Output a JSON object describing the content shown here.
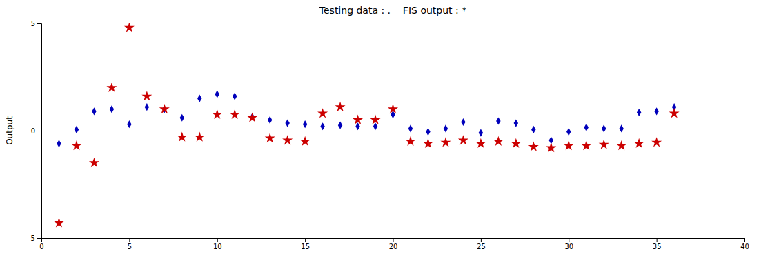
{
  "chart_data": {
    "type": "scatter",
    "title": "Testing data : .    FIS output : *",
    "y_label": "Output",
    "xlim": [
      0,
      40
    ],
    "ylim": [
      -5,
      5
    ],
    "xticks": [
      0,
      5,
      10,
      15,
      20,
      25,
      30,
      35,
      40
    ],
    "yticks": [
      -5,
      0,
      5
    ],
    "grid": false,
    "series": [
      {
        "color": "#0000bb",
        "marker": "diamond",
        "x": [
          1,
          2,
          3,
          4,
          5,
          6,
          7,
          8,
          9,
          10,
          11,
          12,
          13,
          14,
          15,
          16,
          17,
          18,
          19,
          20,
          21,
          22,
          23,
          24,
          25,
          26,
          27,
          28,
          29,
          30,
          31,
          32,
          33,
          34,
          35,
          36
        ],
        "values": [
          -0.6,
          0.05,
          0.9,
          1.0,
          0.3,
          1.1,
          1.0,
          0.6,
          1.5,
          1.7,
          1.6,
          0.65,
          0.5,
          0.35,
          0.3,
          0.2,
          0.25,
          0.2,
          0.2,
          0.75,
          0.1,
          -0.05,
          0.1,
          0.4,
          -0.1,
          0.45,
          0.35,
          0.05,
          -0.45,
          -0.05,
          0.15,
          0.1,
          0.1,
          0.85,
          0.9,
          1.1
        ]
      },
      {
        "color": "#cc0000",
        "marker": "star",
        "x": [
          1,
          2,
          3,
          4,
          5,
          6,
          7,
          8,
          9,
          10,
          11,
          12,
          13,
          14,
          15,
          16,
          17,
          18,
          19,
          20,
          21,
          22,
          23,
          24,
          25,
          26,
          27,
          28,
          29,
          30,
          31,
          32,
          33,
          34,
          35,
          36
        ],
        "values": [
          -4.3,
          -0.7,
          -1.5,
          2.0,
          4.8,
          1.6,
          1.0,
          -0.3,
          -0.3,
          0.75,
          0.75,
          0.6,
          -0.35,
          -0.45,
          -0.5,
          0.8,
          1.1,
          0.5,
          0.5,
          1.0,
          -0.5,
          -0.6,
          -0.55,
          -0.45,
          -0.6,
          -0.5,
          -0.6,
          -0.75,
          -0.8,
          -0.7,
          -0.7,
          -0.65,
          -0.7,
          -0.6,
          -0.55,
          0.8
        ]
      }
    ]
  }
}
